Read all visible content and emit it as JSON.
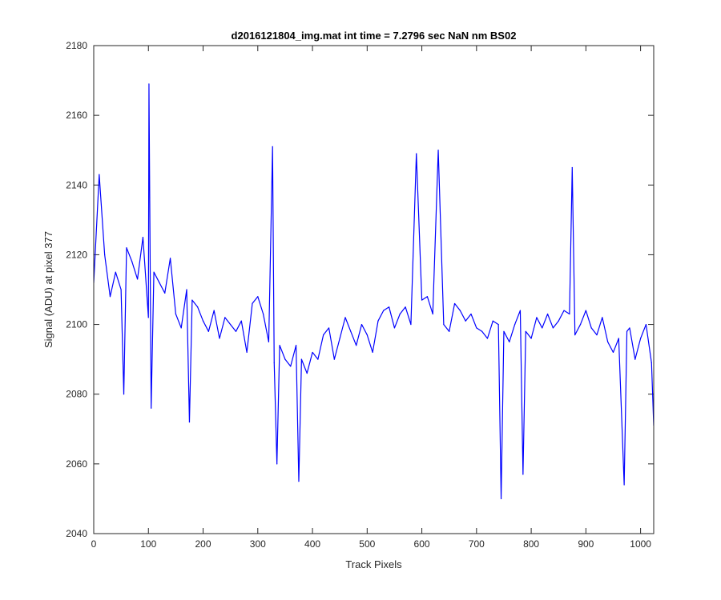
{
  "chart_data": {
    "type": "line",
    "title": "d2016121804_img.mat int time = 7.2796 sec  NaN nm BS02",
    "xlabel": "Track Pixels",
    "ylabel": "Signal (ADU) at pixel 377",
    "xlim": [
      0,
      1024
    ],
    "ylim": [
      2040,
      2180
    ],
    "xticks": [
      0,
      100,
      200,
      300,
      400,
      500,
      600,
      700,
      800,
      900,
      1000
    ],
    "yticks": [
      2040,
      2060,
      2080,
      2100,
      2120,
      2140,
      2160,
      2180
    ],
    "grid": false,
    "legend": "none",
    "series": [
      {
        "color": "#0000ff",
        "x": [
          0,
          10,
          20,
          30,
          40,
          50,
          55,
          60,
          70,
          80,
          90,
          100,
          101,
          105,
          110,
          120,
          130,
          140,
          150,
          160,
          170,
          175,
          180,
          190,
          200,
          210,
          220,
          230,
          240,
          250,
          260,
          270,
          280,
          290,
          300,
          310,
          320,
          327,
          330,
          335,
          340,
          350,
          360,
          370,
          375,
          380,
          390,
          400,
          410,
          420,
          430,
          440,
          450,
          460,
          470,
          480,
          490,
          500,
          510,
          520,
          530,
          540,
          550,
          560,
          570,
          580,
          590,
          600,
          610,
          620,
          630,
          640,
          650,
          660,
          670,
          680,
          690,
          700,
          710,
          720,
          730,
          740,
          745,
          750,
          760,
          770,
          780,
          785,
          790,
          800,
          810,
          820,
          830,
          840,
          850,
          860,
          870,
          875,
          880,
          890,
          900,
          910,
          920,
          930,
          940,
          950,
          960,
          970,
          975,
          980,
          990,
          1000,
          1010,
          1020,
          1024
        ],
        "y": [
          2112,
          2143,
          2120,
          2108,
          2115,
          2110,
          2080,
          2122,
          2118,
          2113,
          2125,
          2102,
          2169,
          2076,
          2115,
          2112,
          2109,
          2119,
          2103,
          2099,
          2110,
          2072,
          2107,
          2105,
          2101,
          2098,
          2104,
          2096,
          2102,
          2100,
          2098,
          2101,
          2092,
          2106,
          2108,
          2103,
          2095,
          2151,
          2089,
          2060,
          2094,
          2090,
          2088,
          2094,
          2055,
          2090,
          2086,
          2092,
          2090,
          2097,
          2099,
          2090,
          2096,
          2102,
          2098,
          2094,
          2100,
          2097,
          2092,
          2101,
          2104,
          2105,
          2099,
          2103,
          2105,
          2100,
          2149,
          2107,
          2108,
          2103,
          2150,
          2100,
          2098,
          2106,
          2104,
          2101,
          2103,
          2099,
          2098,
          2096,
          2101,
          2100,
          2050,
          2098,
          2095,
          2100,
          2104,
          2057,
          2098,
          2096,
          2102,
          2099,
          2103,
          2099,
          2101,
          2104,
          2103,
          2145,
          2097,
          2100,
          2104,
          2099,
          2097,
          2102,
          2095,
          2092,
          2096,
          2054,
          2098,
          2099,
          2090,
          2096,
          2100,
          2089,
          2071
        ]
      }
    ]
  }
}
